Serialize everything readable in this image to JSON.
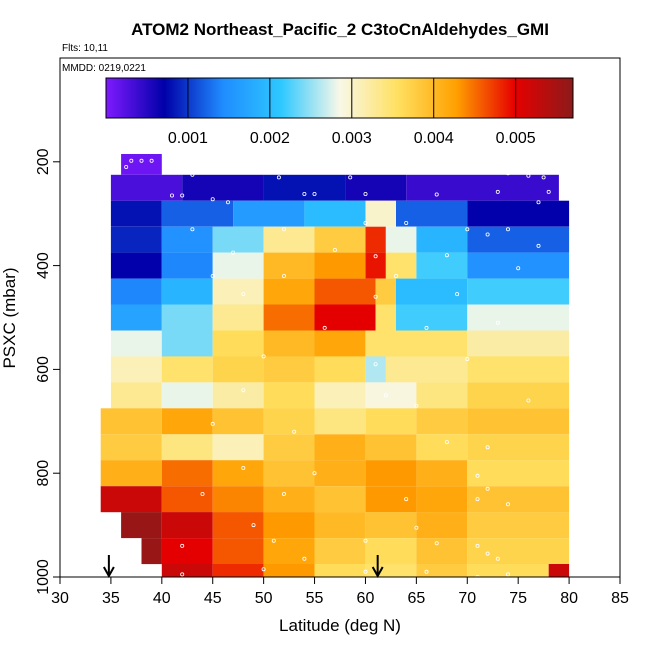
{
  "chart_data": {
    "type": "heatmap",
    "title": "ATOM2 Northeast_Pacific_2 C3toCnAldehydes_GMI",
    "flights_label": "Flts: 10,11",
    "dates_label": "MMDD: 0219,0221",
    "xlabel": "Latitude (deg N)",
    "ylabel": "PSXC (mbar)",
    "xlim": [
      30,
      85
    ],
    "ylim": [
      1000,
      0
    ],
    "xticks": [
      "30",
      "35",
      "40",
      "45",
      "50",
      "55",
      "60",
      "65",
      "70",
      "75",
      "80",
      "85"
    ],
    "yticks": [
      "200",
      "400",
      "600",
      "800",
      "1000"
    ],
    "colorbar": {
      "range": [
        0,
        0.0057
      ],
      "tick_values": [
        0.001,
        0.002,
        0.003,
        0.004,
        0.005
      ],
      "tick_labels": [
        "0.001",
        "0.002",
        "0.003",
        "0.004",
        "0.005"
      ],
      "colors": [
        "#7f1aff",
        "#0000a8",
        "#1f8cff",
        "#2ec8ff",
        "#f8f8e8",
        "#ffe060",
        "#ffa000",
        "#e60000",
        "#8c1a1a"
      ]
    },
    "pressure_levels": [
      200,
      250,
      300,
      350,
      400,
      450,
      500,
      550,
      600,
      650,
      700,
      750,
      800,
      850,
      900,
      950,
      1000
    ],
    "bands": [
      {
        "p": 200,
        "segments": [
          {
            "x0": 36,
            "x1": 40,
            "v": 0.0001
          }
        ]
      },
      {
        "p": 250,
        "segments": [
          {
            "x0": 35,
            "x1": 42,
            "v": 0.0003
          },
          {
            "x0": 42,
            "x1": 50,
            "v": 0.0006
          },
          {
            "x0": 50,
            "x1": 58,
            "v": 0.0008
          },
          {
            "x0": 58,
            "x1": 64,
            "v": 0.0006
          },
          {
            "x0": 64,
            "x1": 79,
            "v": 0.0004
          }
        ]
      },
      {
        "p": 300,
        "segments": [
          {
            "x0": 35,
            "x1": 40,
            "v": 0.0008
          },
          {
            "x0": 40,
            "x1": 47,
            "v": 0.0012
          },
          {
            "x0": 47,
            "x1": 54,
            "v": 0.0016
          },
          {
            "x0": 54,
            "x1": 60,
            "v": 0.002
          },
          {
            "x0": 60,
            "x1": 63,
            "v": 0.003
          },
          {
            "x0": 63,
            "x1": 70,
            "v": 0.0012
          },
          {
            "x0": 70,
            "x1": 80,
            "v": 0.0007
          }
        ]
      },
      {
        "p": 350,
        "segments": [
          {
            "x0": 35,
            "x1": 40,
            "v": 0.0009
          },
          {
            "x0": 40,
            "x1": 45,
            "v": 0.0015
          },
          {
            "x0": 45,
            "x1": 50,
            "v": 0.0024
          },
          {
            "x0": 50,
            "x1": 55,
            "v": 0.0033
          },
          {
            "x0": 55,
            "x1": 60,
            "v": 0.0038
          },
          {
            "x0": 60,
            "x1": 62,
            "v": 0.0048
          },
          {
            "x0": 62,
            "x1": 65,
            "v": 0.0028
          },
          {
            "x0": 65,
            "x1": 70,
            "v": 0.0019
          },
          {
            "x0": 70,
            "x1": 80,
            "v": 0.0012
          }
        ]
      },
      {
        "p": 400,
        "segments": [
          {
            "x0": 35,
            "x1": 40,
            "v": 0.0007
          },
          {
            "x0": 40,
            "x1": 45,
            "v": 0.0014
          },
          {
            "x0": 45,
            "x1": 50,
            "v": 0.0028
          },
          {
            "x0": 50,
            "x1": 55,
            "v": 0.004
          },
          {
            "x0": 55,
            "x1": 60,
            "v": 0.0043
          },
          {
            "x0": 60,
            "x1": 62,
            "v": 0.0049
          },
          {
            "x0": 62,
            "x1": 65,
            "v": 0.0035
          },
          {
            "x0": 65,
            "x1": 70,
            "v": 0.0022
          },
          {
            "x0": 70,
            "x1": 80,
            "v": 0.0015
          }
        ]
      },
      {
        "p": 450,
        "segments": [
          {
            "x0": 35,
            "x1": 40,
            "v": 0.0014
          },
          {
            "x0": 40,
            "x1": 45,
            "v": 0.0019
          },
          {
            "x0": 45,
            "x1": 50,
            "v": 0.0031
          },
          {
            "x0": 50,
            "x1": 55,
            "v": 0.0042
          },
          {
            "x0": 55,
            "x1": 61,
            "v": 0.0046
          },
          {
            "x0": 61,
            "x1": 63,
            "v": 0.0038
          },
          {
            "x0": 63,
            "x1": 70,
            "v": 0.002
          },
          {
            "x0": 70,
            "x1": 80,
            "v": 0.0022
          }
        ]
      },
      {
        "p": 500,
        "segments": [
          {
            "x0": 35,
            "x1": 40,
            "v": 0.0017
          },
          {
            "x0": 40,
            "x1": 45,
            "v": 0.0024
          },
          {
            "x0": 45,
            "x1": 50,
            "v": 0.0033
          },
          {
            "x0": 50,
            "x1": 55,
            "v": 0.0045
          },
          {
            "x0": 55,
            "x1": 61,
            "v": 0.005
          },
          {
            "x0": 61,
            "x1": 63,
            "v": 0.0035
          },
          {
            "x0": 63,
            "x1": 70,
            "v": 0.0022
          },
          {
            "x0": 70,
            "x1": 80,
            "v": 0.0028
          }
        ]
      },
      {
        "p": 550,
        "segments": [
          {
            "x0": 35,
            "x1": 40,
            "v": 0.0028
          },
          {
            "x0": 40,
            "x1": 45,
            "v": 0.0024
          },
          {
            "x0": 45,
            "x1": 50,
            "v": 0.0036
          },
          {
            "x0": 50,
            "x1": 55,
            "v": 0.004
          },
          {
            "x0": 55,
            "x1": 60,
            "v": 0.0042
          },
          {
            "x0": 60,
            "x1": 70,
            "v": 0.0035
          },
          {
            "x0": 70,
            "x1": 80,
            "v": 0.0032
          }
        ]
      },
      {
        "p": 600,
        "segments": [
          {
            "x0": 35,
            "x1": 40,
            "v": 0.0031
          },
          {
            "x0": 40,
            "x1": 45,
            "v": 0.0035
          },
          {
            "x0": 45,
            "x1": 50,
            "v": 0.0037
          },
          {
            "x0": 50,
            "x1": 55,
            "v": 0.0038
          },
          {
            "x0": 55,
            "x1": 60,
            "v": 0.0036
          },
          {
            "x0": 60,
            "x1": 62,
            "v": 0.0026
          },
          {
            "x0": 62,
            "x1": 70,
            "v": 0.0033
          },
          {
            "x0": 70,
            "x1": 80,
            "v": 0.0035
          }
        ]
      },
      {
        "p": 650,
        "segments": [
          {
            "x0": 35,
            "x1": 40,
            "v": 0.0033
          },
          {
            "x0": 40,
            "x1": 45,
            "v": 0.0028
          },
          {
            "x0": 45,
            "x1": 50,
            "v": 0.0032
          },
          {
            "x0": 50,
            "x1": 55,
            "v": 0.0036
          },
          {
            "x0": 55,
            "x1": 60,
            "v": 0.0031
          },
          {
            "x0": 60,
            "x1": 65,
            "v": 0.0029
          },
          {
            "x0": 65,
            "x1": 70,
            "v": 0.0034
          },
          {
            "x0": 70,
            "x1": 80,
            "v": 0.0037
          }
        ]
      },
      {
        "p": 700,
        "segments": [
          {
            "x0": 34,
            "x1": 40,
            "v": 0.0039
          },
          {
            "x0": 40,
            "x1": 45,
            "v": 0.0042
          },
          {
            "x0": 45,
            "x1": 50,
            "v": 0.0039
          },
          {
            "x0": 50,
            "x1": 55,
            "v": 0.0037
          },
          {
            "x0": 55,
            "x1": 60,
            "v": 0.0034
          },
          {
            "x0": 60,
            "x1": 65,
            "v": 0.0036
          },
          {
            "x0": 65,
            "x1": 70,
            "v": 0.0038
          },
          {
            "x0": 70,
            "x1": 80,
            "v": 0.0039
          }
        ]
      },
      {
        "p": 750,
        "segments": [
          {
            "x0": 34,
            "x1": 40,
            "v": 0.0038
          },
          {
            "x0": 40,
            "x1": 45,
            "v": 0.0034
          },
          {
            "x0": 45,
            "x1": 50,
            "v": 0.0031
          },
          {
            "x0": 50,
            "x1": 55,
            "v": 0.0038
          },
          {
            "x0": 55,
            "x1": 60,
            "v": 0.0041
          },
          {
            "x0": 60,
            "x1": 65,
            "v": 0.0039
          },
          {
            "x0": 65,
            "x1": 70,
            "v": 0.0036
          },
          {
            "x0": 70,
            "x1": 80,
            "v": 0.0037
          }
        ]
      },
      {
        "p": 800,
        "segments": [
          {
            "x0": 34,
            "x1": 40,
            "v": 0.0041
          },
          {
            "x0": 40,
            "x1": 45,
            "v": 0.0045
          },
          {
            "x0": 45,
            "x1": 50,
            "v": 0.0042
          },
          {
            "x0": 50,
            "x1": 55,
            "v": 0.0039
          },
          {
            "x0": 55,
            "x1": 60,
            "v": 0.0041
          },
          {
            "x0": 60,
            "x1": 65,
            "v": 0.0043
          },
          {
            "x0": 65,
            "x1": 70,
            "v": 0.0041
          },
          {
            "x0": 70,
            "x1": 80,
            "v": 0.0036
          }
        ]
      },
      {
        "p": 850,
        "segments": [
          {
            "x0": 34,
            "x1": 40,
            "v": 0.0052
          },
          {
            "x0": 40,
            "x1": 45,
            "v": 0.0046
          },
          {
            "x0": 45,
            "x1": 50,
            "v": 0.0044
          },
          {
            "x0": 50,
            "x1": 55,
            "v": 0.0041
          },
          {
            "x0": 55,
            "x1": 60,
            "v": 0.0039
          },
          {
            "x0": 60,
            "x1": 65,
            "v": 0.0043
          },
          {
            "x0": 65,
            "x1": 70,
            "v": 0.0042
          },
          {
            "x0": 70,
            "x1": 80,
            "v": 0.0039
          }
        ]
      },
      {
        "p": 900,
        "segments": [
          {
            "x0": 36,
            "x1": 40,
            "v": 0.0056
          },
          {
            "x0": 40,
            "x1": 45,
            "v": 0.0052
          },
          {
            "x0": 45,
            "x1": 50,
            "v": 0.0046
          },
          {
            "x0": 50,
            "x1": 55,
            "v": 0.0043
          },
          {
            "x0": 55,
            "x1": 60,
            "v": 0.004
          },
          {
            "x0": 60,
            "x1": 65,
            "v": 0.0039
          },
          {
            "x0": 65,
            "x1": 70,
            "v": 0.0041
          },
          {
            "x0": 70,
            "x1": 80,
            "v": 0.0038
          }
        ]
      },
      {
        "p": 950,
        "segments": [
          {
            "x0": 38,
            "x1": 40,
            "v": 0.0056
          },
          {
            "x0": 40,
            "x1": 45,
            "v": 0.005
          },
          {
            "x0": 45,
            "x1": 50,
            "v": 0.0046
          },
          {
            "x0": 50,
            "x1": 55,
            "v": 0.0042
          },
          {
            "x0": 55,
            "x1": 60,
            "v": 0.0038
          },
          {
            "x0": 60,
            "x1": 65,
            "v": 0.0036
          },
          {
            "x0": 65,
            "x1": 70,
            "v": 0.0039
          },
          {
            "x0": 70,
            "x1": 80,
            "v": 0.0037
          }
        ]
      },
      {
        "p": 1000,
        "segments": [
          {
            "x0": 40,
            "x1": 45,
            "v": 0.0052
          },
          {
            "x0": 45,
            "x1": 50,
            "v": 0.0048
          },
          {
            "x0": 50,
            "x1": 55,
            "v": 0.0043
          },
          {
            "x0": 55,
            "x1": 60,
            "v": 0.0036
          },
          {
            "x0": 60,
            "x1": 65,
            "v": 0.0035
          },
          {
            "x0": 65,
            "x1": 70,
            "v": 0.0038
          },
          {
            "x0": 70,
            "x1": 78,
            "v": 0.0036
          },
          {
            "x0": 78,
            "x1": 80,
            "v": 0.0052
          }
        ]
      }
    ],
    "sample_points": [
      [
        37,
        198
      ],
      [
        38,
        198
      ],
      [
        39,
        198
      ],
      [
        36.5,
        210
      ],
      [
        43,
        225
      ],
      [
        51.5,
        230
      ],
      [
        57.5,
        218
      ],
      [
        58.5,
        230
      ],
      [
        66,
        213
      ],
      [
        68,
        212
      ],
      [
        74,
        222
      ],
      [
        76,
        227
      ],
      [
        77.5,
        230
      ],
      [
        41,
        265
      ],
      [
        42,
        265
      ],
      [
        45,
        272
      ],
      [
        46.5,
        278
      ],
      [
        54,
        262
      ],
      [
        55,
        262
      ],
      [
        60,
        262
      ],
      [
        67,
        263
      ],
      [
        73,
        258
      ],
      [
        78,
        258
      ],
      [
        77,
        278
      ],
      [
        43,
        330
      ],
      [
        52,
        330
      ],
      [
        60,
        318
      ],
      [
        64,
        318
      ],
      [
        70,
        330
      ],
      [
        72,
        340
      ],
      [
        74,
        330
      ],
      [
        47,
        375
      ],
      [
        57,
        370
      ],
      [
        61,
        382
      ],
      [
        68,
        380
      ],
      [
        77,
        362
      ],
      [
        45,
        420
      ],
      [
        52,
        420
      ],
      [
        63,
        420
      ],
      [
        75,
        405
      ],
      [
        48,
        455
      ],
      [
        61,
        460
      ],
      [
        69,
        455
      ],
      [
        56,
        520
      ],
      [
        66,
        520
      ],
      [
        73,
        510
      ],
      [
        50,
        575
      ],
      [
        61,
        590
      ],
      [
        70,
        580
      ],
      [
        48,
        640
      ],
      [
        62,
        650
      ],
      [
        65,
        670
      ],
      [
        76,
        660
      ],
      [
        45,
        705
      ],
      [
        53,
        720
      ],
      [
        68,
        740
      ],
      [
        72,
        750
      ],
      [
        48,
        790
      ],
      [
        55,
        800
      ],
      [
        71,
        805
      ],
      [
        72,
        830
      ],
      [
        44,
        840
      ],
      [
        52,
        840
      ],
      [
        64,
        850
      ],
      [
        71,
        850
      ],
      [
        74,
        860
      ],
      [
        49,
        900
      ],
      [
        65,
        905
      ],
      [
        42,
        940
      ],
      [
        51,
        930
      ],
      [
        60,
        930
      ],
      [
        67,
        935
      ],
      [
        71,
        940
      ],
      [
        72,
        955
      ],
      [
        54,
        965
      ],
      [
        73,
        965
      ],
      [
        42,
        995
      ],
      [
        50,
        985
      ],
      [
        60,
        990
      ],
      [
        66,
        990
      ],
      [
        74,
        995
      ],
      [
        71,
        1000
      ]
    ],
    "arrows_x": [
      34.8,
      61.2
    ]
  }
}
